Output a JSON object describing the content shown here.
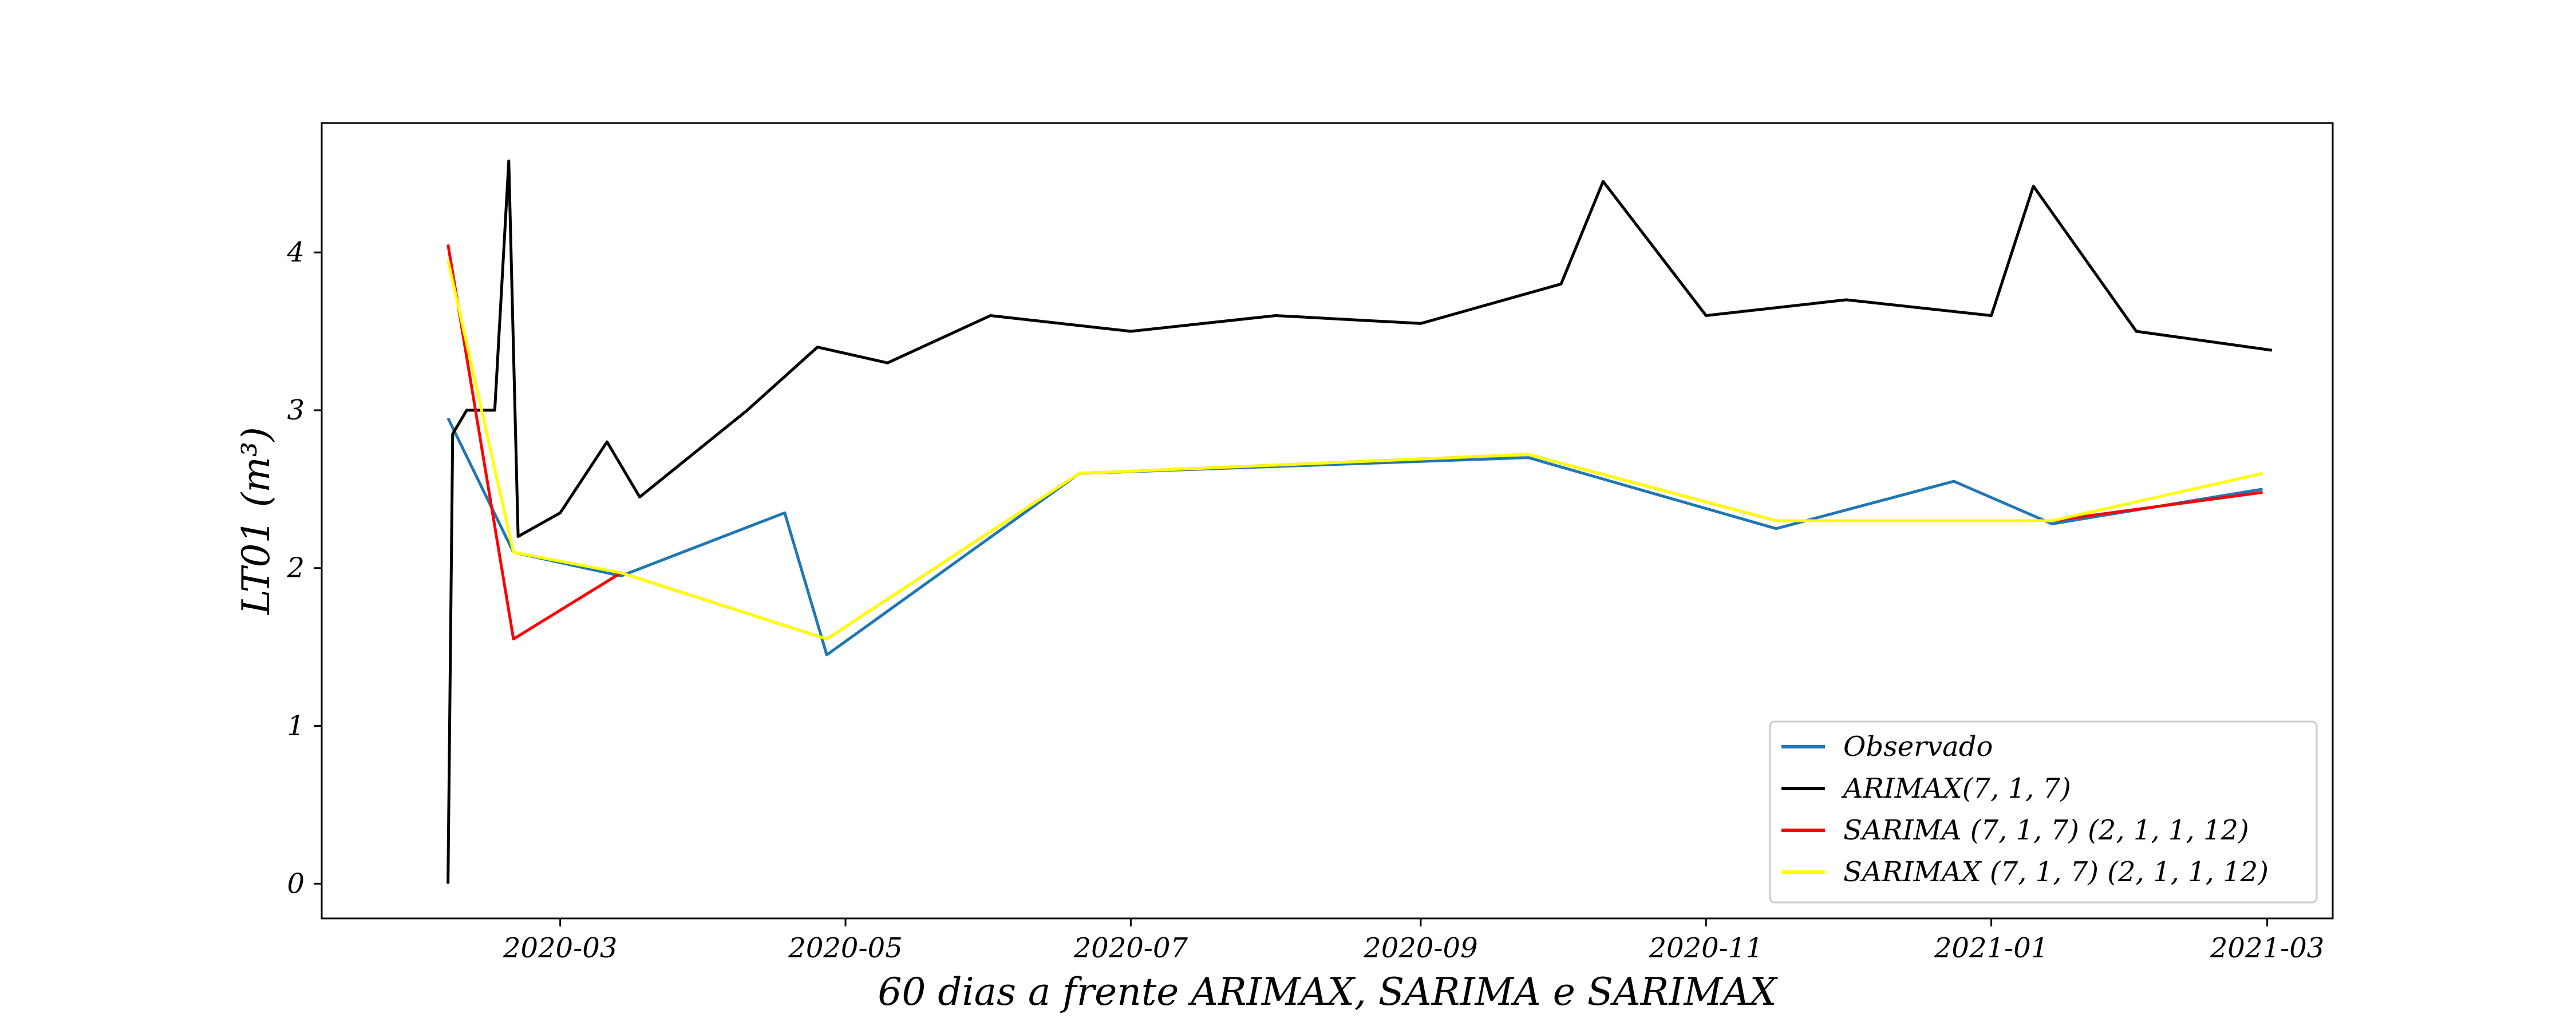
{
  "chart_data": {
    "type": "line",
    "title": "",
    "xlabel": "60 dias a frente ARIMAX, SARIMA e SARIMAX",
    "ylabel": "LT01 (m³)",
    "x_range": [
      "2020-01-10",
      "2021-03-15"
    ],
    "ylim": [
      -0.22,
      4.82
    ],
    "x_ticks": [
      "2020-03",
      "2020-05",
      "2020-07",
      "2020-09",
      "2020-11",
      "2021-01",
      "2021-03"
    ],
    "y_ticks": [
      "0",
      "1",
      "2",
      "3",
      "4"
    ],
    "legend_position": "lower-right",
    "grid": false,
    "series": [
      {
        "name": "Observado",
        "color": "#1f77b4",
        "x": [
          "2020-02-06",
          "2020-02-20",
          "2020-03-14",
          "2020-04-18",
          "2020-04-27",
          "2020-06-20",
          "2020-09-24",
          "2020-11-16",
          "2020-12-24",
          "2021-01-14",
          "2021-02-28"
        ],
        "y": [
          2.95,
          2.1,
          1.95,
          2.35,
          1.45,
          2.6,
          2.7,
          2.25,
          2.55,
          2.28,
          2.5
        ]
      },
      {
        "name": "ARIMAX(7, 1, 7)",
        "color": "#000000",
        "x": [
          "2020-02-06",
          "2020-02-07",
          "2020-02-10",
          "2020-02-16",
          "2020-02-19",
          "2020-02-21",
          "2020-03-01",
          "2020-03-11",
          "2020-03-18",
          "2020-04-10",
          "2020-04-25",
          "2020-05-10",
          "2020-06-01",
          "2020-07-01",
          "2020-08-01",
          "2020-09-01",
          "2020-10-01",
          "2020-10-10",
          "2020-11-01",
          "2020-12-01",
          "2021-01-01",
          "2021-01-10",
          "2021-02-01",
          "2021-03-02"
        ],
        "y": [
          0.0,
          2.85,
          3.0,
          3.0,
          4.58,
          2.2,
          2.35,
          2.8,
          2.45,
          3.0,
          3.4,
          3.3,
          3.6,
          3.5,
          3.6,
          3.55,
          3.8,
          4.45,
          3.6,
          3.7,
          3.6,
          4.42,
          3.5,
          3.38
        ]
      },
      {
        "name": "SARIMA (7, 1, 7) (2, 1, 1, 12)",
        "color": "#ff0000",
        "x": [
          "2020-02-06",
          "2020-02-20",
          "2020-03-14",
          "2020-04-27",
          "2020-06-20",
          "2020-09-24",
          "2020-11-16",
          "2021-01-14",
          "2021-02-28"
        ],
        "y": [
          4.05,
          1.55,
          1.97,
          1.55,
          2.6,
          2.72,
          2.3,
          2.3,
          2.48
        ]
      },
      {
        "name": "SARIMAX (7, 1, 7) (2, 1, 1, 12)",
        "color": "#ffff00",
        "x": [
          "2020-02-06",
          "2020-02-20",
          "2020-03-14",
          "2020-04-27",
          "2020-06-20",
          "2020-09-24",
          "2020-11-16",
          "2021-01-14",
          "2021-02-28"
        ],
        "y": [
          3.95,
          2.1,
          1.97,
          1.55,
          2.6,
          2.72,
          2.3,
          2.3,
          2.6
        ]
      }
    ]
  }
}
